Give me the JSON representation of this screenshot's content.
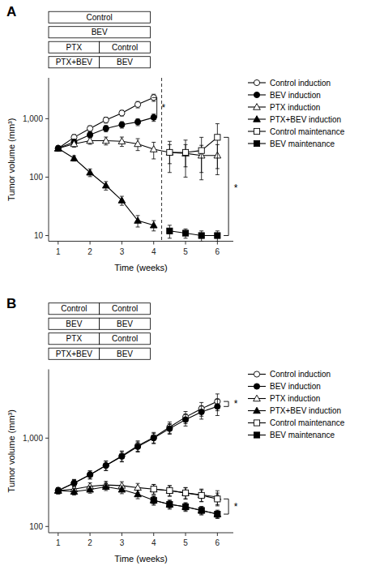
{
  "chart_data": [
    {
      "type": "line",
      "title": "A",
      "log": "y",
      "grid": false,
      "legend": "right",
      "xlabel": "Time (weeks)",
      "ylabel": "Tumor volume (mm³)",
      "xlim": [
        0.7,
        6.5
      ],
      "xticks": [
        1,
        2,
        3,
        4,
        5,
        6
      ],
      "ylim": [
        8,
        5000
      ],
      "yticks": [
        10,
        100,
        {
          "value": 1000,
          "label": "1,000"
        }
      ],
      "treatment_rows": [
        [
          "Control"
        ],
        [
          "BEV"
        ],
        [
          "PTX",
          "Control"
        ],
        [
          "PTX+BEV",
          "BEV"
        ]
      ],
      "vlines": [
        4.25
      ],
      "brackets": [
        {
          "x": 4.1,
          "y1": 2300,
          "y2": 1050
        },
        {
          "x": 6.35,
          "y1": 480,
          "y2": 10
        }
      ],
      "annotations": [
        {
          "text": "*",
          "x": 4.25,
          "y": 1550
        },
        {
          "text": "*",
          "x": 6.52,
          "y": 65
        }
      ],
      "series": [
        {
          "name": "Control induction",
          "color": "#000000",
          "marker": "circle-open",
          "x": [
            1,
            1.5,
            2,
            2.5,
            3,
            3.5,
            4
          ],
          "values": [
            310,
            480,
            680,
            950,
            1250,
            1750,
            2300
          ],
          "errors": [
            30,
            55,
            75,
            110,
            140,
            220,
            320
          ]
        },
        {
          "name": "BEV induction",
          "color": "#000000",
          "marker": "circle-filled",
          "x": [
            1,
            1.5,
            2,
            2.5,
            3,
            3.5,
            4
          ],
          "values": [
            310,
            400,
            530,
            680,
            790,
            880,
            1050
          ],
          "errors": [
            30,
            45,
            60,
            85,
            100,
            120,
            150
          ]
        },
        {
          "name": "PTX induction",
          "color": "#000000",
          "marker": "triangle-open",
          "x": [
            1,
            1.5,
            2,
            2.5,
            3,
            3.5,
            4,
            4.5,
            5,
            5.5,
            6
          ],
          "values": [
            310,
            370,
            420,
            420,
            410,
            370,
            300,
            265,
            255,
            235,
            235
          ],
          "errors": [
            30,
            45,
            55,
            65,
            75,
            85,
            95,
            95,
            105,
            115,
            125
          ]
        },
        {
          "name": "PTX+BEV induction",
          "color": "#000000",
          "marker": "triangle-filled",
          "x": [
            1,
            1.5,
            2,
            2.5,
            3,
            3.5,
            4
          ],
          "values": [
            310,
            210,
            120,
            72,
            40,
            18,
            15
          ],
          "errors": [
            30,
            22,
            18,
            12,
            7,
            4,
            3
          ]
        },
        {
          "name": "Control maintenance",
          "color": "#000000",
          "marker": "square-open",
          "x": [
            4.5,
            5,
            5.5,
            6
          ],
          "values": [
            265,
            265,
            285,
            480
          ],
          "errors": [
            145,
            165,
            195,
            340
          ]
        },
        {
          "name": "BEV maintenance",
          "color": "#000000",
          "marker": "square-filled",
          "x": [
            4.5,
            5,
            5.5,
            6
          ],
          "values": [
            12,
            11,
            10,
            10
          ],
          "errors": [
            3,
            2,
            2,
            2
          ]
        }
      ]
    },
    {
      "type": "line",
      "title": "B",
      "log": "y",
      "grid": false,
      "legend": "right",
      "xlabel": "Time (weeks)",
      "ylabel": "Tumor volume (mm³)",
      "xlim": [
        0.7,
        6.5
      ],
      "xticks": [
        1,
        2,
        3,
        4,
        5,
        6
      ],
      "ylim": [
        85,
        6000
      ],
      "yticks": [
        100,
        {
          "value": 1000,
          "label": "1,000"
        }
      ],
      "treatment_rows": [
        [
          "Control",
          "Control"
        ],
        [
          "BEV",
          "BEV"
        ],
        [
          "PTX",
          "Control"
        ],
        [
          "PTX+BEV",
          "BEV"
        ]
      ],
      "vlines": [],
      "brackets": [
        {
          "x": 6.35,
          "y1": 2600,
          "y2": 2280
        },
        {
          "x": 6.35,
          "y1": 205,
          "y2": 138
        }
      ],
      "annotations": [
        {
          "text": "*",
          "x": 6.52,
          "y": 2420
        },
        {
          "text": "*",
          "x": 6.52,
          "y": 168
        }
      ],
      "series": [
        {
          "name": "Control induction",
          "color": "#000000",
          "marker": "circle-open",
          "x": [
            1,
            1.5,
            2,
            2.5,
            3,
            3.5,
            4,
            4.5,
            5,
            5.5,
            6
          ],
          "values": [
            255,
            310,
            385,
            490,
            630,
            820,
            1020,
            1330,
            1730,
            2150,
            2600
          ],
          "errors": [
            20,
            30,
            40,
            60,
            85,
            110,
            140,
            195,
            270,
            380,
            560
          ]
        },
        {
          "name": "BEV induction",
          "color": "#000000",
          "marker": "circle-filled",
          "x": [
            1,
            1.5,
            2,
            2.5,
            3,
            3.5,
            4,
            4.5,
            5,
            5.5,
            6
          ],
          "values": [
            255,
            310,
            385,
            490,
            620,
            800,
            1000,
            1280,
            1620,
            1980,
            2280
          ],
          "errors": [
            20,
            30,
            40,
            60,
            82,
            105,
            135,
            175,
            250,
            340,
            480
          ]
        },
        {
          "name": "PTX induction",
          "color": "#000000",
          "marker": "triangle-open",
          "x": [
            1,
            1.5,
            2,
            2.5,
            3,
            3.5,
            4,
            4.5,
            5,
            5.5,
            6
          ],
          "values": [
            255,
            265,
            285,
            295,
            290,
            275,
            265,
            255,
            240,
            228,
            215
          ],
          "errors": [
            20,
            24,
            27,
            29,
            31,
            32,
            34,
            35,
            36,
            37,
            39
          ]
        },
        {
          "name": "PTX+BEV induction",
          "color": "#000000",
          "marker": "triangle-filled",
          "x": [
            1,
            1.5,
            2,
            2.5,
            3,
            3.5,
            4,
            4.5,
            5,
            5.5,
            6
          ],
          "values": [
            255,
            248,
            262,
            282,
            262,
            232,
            198,
            178,
            167,
            152,
            138
          ],
          "errors": [
            20,
            21,
            24,
            27,
            27,
            26,
            24,
            21,
            19,
            17,
            15
          ]
        },
        {
          "name": "Control maintenance",
          "color": "#000000",
          "marker": "square-open",
          "x": [
            4,
            4.5,
            5,
            5.5,
            6
          ],
          "values": [
            265,
            255,
            240,
            225,
            205
          ],
          "errors": [
            34,
            34,
            34,
            34,
            34
          ]
        },
        {
          "name": "BEV maintenance",
          "color": "#000000",
          "marker": "square-filled",
          "x": [
            4,
            4.5,
            5,
            5.5,
            6
          ],
          "values": [
            198,
            178,
            167,
            152,
            138
          ],
          "errors": [
            19,
            17,
            16,
            14,
            12
          ]
        }
      ]
    }
  ]
}
